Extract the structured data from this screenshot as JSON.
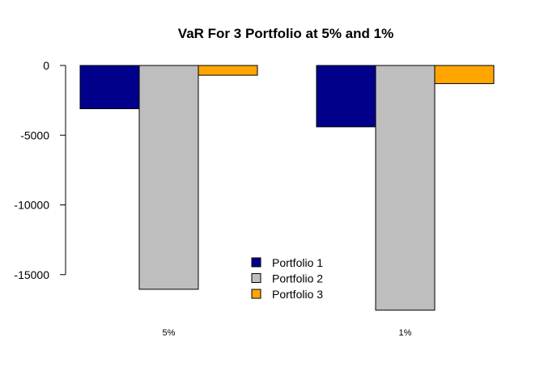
{
  "chart_data": {
    "type": "bar",
    "title": "VaR For 3 Portfolio at 5% and 1%",
    "xlabel": "",
    "ylabel": "",
    "categories": [
      "5%",
      "1%"
    ],
    "series": [
      {
        "name": "Portfolio 1",
        "color": "#00008B",
        "values": [
          -3100,
          -4400
        ]
      },
      {
        "name": "Portfolio 2",
        "color": "#BEBEBE",
        "values": [
          -16050,
          -17550
        ]
      },
      {
        "name": "Portfolio 3",
        "color": "#FFA500",
        "values": [
          -700,
          -1300
        ]
      }
    ],
    "yticks": [
      0,
      -5000,
      -10000,
      -15000
    ],
    "ylim": [
      -17550,
      0
    ],
    "grid": false,
    "legend": "bottom-center"
  }
}
